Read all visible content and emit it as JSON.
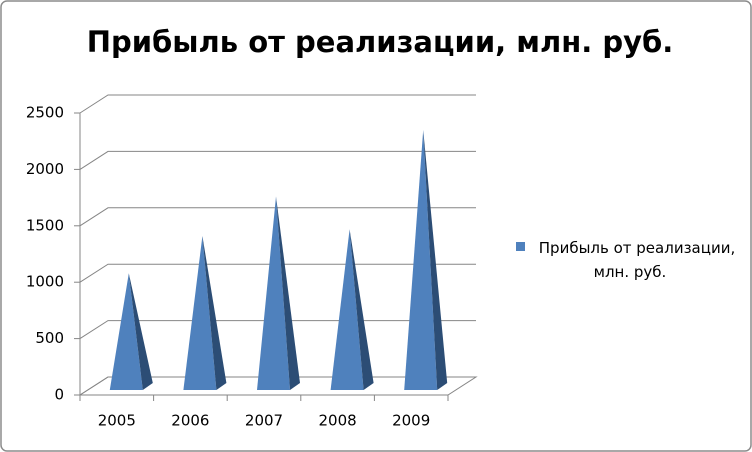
{
  "chart_data": {
    "type": "pyramid3d",
    "title": "Прибыль от реализации, млн. руб.",
    "categories": [
      "2005",
      "2006",
      "2007",
      "2008",
      "2009"
    ],
    "series": [
      {
        "name": "Прибыль от реализации, млн. руб.",
        "color": "#4f81bd",
        "values": [
          1000,
          1330,
          1680,
          1390,
          2270
        ]
      }
    ],
    "ylim": [
      0,
      2500
    ],
    "yticks": [
      0,
      500,
      1000,
      1500,
      2000,
      2500
    ],
    "grid": true,
    "legend": "right"
  }
}
